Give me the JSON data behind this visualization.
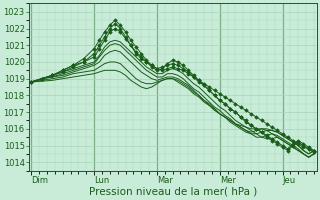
{
  "xlabel": "Pression niveau de la mer( hPa )",
  "background_color": "#c8ecd8",
  "plot_bg_color": "#c8ecd8",
  "grid_color": "#a8d4b8",
  "line_color": "#1a5c1a",
  "ylim": [
    1013.5,
    1023.5
  ],
  "yticks": [
    1014,
    1015,
    1016,
    1017,
    1018,
    1019,
    1020,
    1021,
    1022,
    1023
  ],
  "day_labels": [
    "Dim",
    "Lun",
    "Mar",
    "Mer",
    "Jeu"
  ],
  "day_positions": [
    0,
    24,
    48,
    72,
    96
  ],
  "xlim": [
    -1,
    109
  ],
  "n_points": 109,
  "linewidth": 0.7,
  "fontsize_ticks": 6.0,
  "fontsize_xlabel": 7.5,
  "tick_color": "#1a5c1a",
  "spine_color": "#1a5c1a",
  "figwidth": 3.2,
  "figheight": 2.0,
  "dpi": 100,
  "series": [
    {
      "x": [
        0,
        4,
        8,
        12,
        16,
        20,
        24,
        26,
        28,
        30,
        32,
        34,
        36,
        38,
        40,
        42,
        44,
        46,
        48,
        50,
        52,
        54,
        56,
        58,
        60,
        62,
        64,
        66,
        68,
        70,
        72,
        74,
        76,
        78,
        80,
        82,
        84,
        86,
        88,
        90,
        92,
        94,
        96,
        98,
        100,
        102,
        104,
        106,
        108
      ],
      "y": [
        1018.8,
        1019.0,
        1019.2,
        1019.5,
        1019.8,
        1020.0,
        1020.5,
        1021.0,
        1021.5,
        1022.0,
        1022.3,
        1022.0,
        1021.5,
        1021.0,
        1020.5,
        1020.2,
        1020.0,
        1019.8,
        1019.6,
        1019.5,
        1019.6,
        1019.7,
        1019.6,
        1019.5,
        1019.3,
        1019.1,
        1018.9,
        1018.7,
        1018.5,
        1018.3,
        1018.1,
        1017.9,
        1017.7,
        1017.5,
        1017.3,
        1017.1,
        1016.9,
        1016.7,
        1016.5,
        1016.3,
        1016.1,
        1015.9,
        1015.7,
        1015.5,
        1015.3,
        1015.1,
        1014.9,
        1014.8,
        1014.7
      ],
      "marker": true
    },
    {
      "x": [
        0,
        4,
        8,
        12,
        16,
        20,
        24,
        26,
        28,
        30,
        32,
        34,
        36,
        38,
        40,
        42,
        44,
        46,
        48,
        50,
        52,
        54,
        56,
        58,
        60,
        62,
        64,
        66,
        68,
        70,
        72,
        74,
        76,
        78,
        80,
        82,
        84,
        86,
        88,
        90,
        92,
        94,
        96,
        98,
        100,
        102,
        104,
        106,
        108
      ],
      "y": [
        1018.8,
        1019.0,
        1019.2,
        1019.5,
        1019.8,
        1020.2,
        1020.8,
        1021.3,
        1021.8,
        1022.2,
        1022.5,
        1022.2,
        1021.8,
        1021.3,
        1020.9,
        1020.5,
        1020.1,
        1019.8,
        1019.6,
        1019.7,
        1019.8,
        1019.9,
        1019.8,
        1019.6,
        1019.4,
        1019.1,
        1018.8,
        1018.6,
        1018.3,
        1018.0,
        1017.7,
        1017.5,
        1017.2,
        1017.0,
        1016.7,
        1016.5,
        1016.2,
        1016.0,
        1015.8,
        1015.5,
        1015.3,
        1015.1,
        1014.9,
        1014.7,
        1015.0,
        1015.2,
        1015.0,
        1014.8,
        1014.6
      ],
      "marker": true
    },
    {
      "x": [
        0,
        4,
        8,
        12,
        16,
        20,
        24,
        26,
        28,
        30,
        32,
        34,
        36,
        38,
        40,
        42,
        44,
        46,
        48,
        50,
        52,
        54,
        56,
        58,
        60,
        62,
        64,
        66,
        68,
        70,
        72,
        74,
        76,
        78,
        80,
        82,
        84,
        86,
        88,
        90,
        92,
        94,
        96,
        98,
        100,
        102,
        104,
        106,
        108
      ],
      "y": [
        1018.8,
        1019.0,
        1019.2,
        1019.4,
        1019.7,
        1020.0,
        1020.3,
        1020.8,
        1021.3,
        1021.8,
        1022.0,
        1021.8,
        1021.4,
        1021.0,
        1020.6,
        1020.3,
        1020.0,
        1019.7,
        1019.5,
        1019.6,
        1019.9,
        1020.1,
        1020.0,
        1019.8,
        1019.5,
        1019.2,
        1018.9,
        1018.6,
        1018.3,
        1018.0,
        1017.7,
        1017.5,
        1017.2,
        1017.0,
        1016.7,
        1016.4,
        1016.2,
        1016.0,
        1015.8,
        1015.6,
        1015.4,
        1015.2,
        1015.0,
        1014.8,
        1015.1,
        1015.3,
        1015.1,
        1014.9,
        1014.7
      ],
      "marker": true
    },
    {
      "x": [
        0,
        4,
        8,
        12,
        16,
        20,
        24,
        26,
        28,
        30,
        32,
        34,
        36,
        38,
        40,
        42,
        44,
        46,
        48,
        50,
        52,
        54,
        56,
        58,
        60,
        62,
        64,
        66,
        68,
        70,
        72,
        74,
        76,
        78,
        80,
        82,
        84,
        86,
        88,
        90,
        92,
        94,
        96,
        98,
        100,
        102,
        104,
        106,
        108
      ],
      "y": [
        1018.8,
        1019.0,
        1019.2,
        1019.4,
        1019.6,
        1019.8,
        1020.0,
        1020.4,
        1020.9,
        1021.2,
        1021.3,
        1021.2,
        1020.9,
        1020.6,
        1020.3,
        1020.0,
        1019.7,
        1019.5,
        1019.3,
        1019.3,
        1019.5,
        1019.6,
        1019.5,
        1019.3,
        1019.0,
        1018.7,
        1018.5,
        1018.2,
        1017.9,
        1017.6,
        1017.3,
        1017.1,
        1016.8,
        1016.5,
        1016.3,
        1016.1,
        1015.9,
        1015.7,
        1015.5,
        1015.4,
        1015.4,
        1015.5,
        1015.3,
        1015.1,
        1014.9,
        1014.7,
        1014.5,
        1014.3,
        1014.5
      ],
      "marker": false
    },
    {
      "x": [
        0,
        4,
        8,
        12,
        16,
        20,
        24,
        26,
        28,
        30,
        32,
        34,
        36,
        38,
        40,
        42,
        44,
        46,
        48,
        50,
        52,
        54,
        56,
        58,
        60,
        62,
        64,
        66,
        68,
        70,
        72,
        74,
        76,
        78,
        80,
        82,
        84,
        86,
        88,
        90,
        92,
        94,
        96,
        98,
        100,
        102,
        104,
        106,
        108
      ],
      "y": [
        1018.8,
        1019.0,
        1019.1,
        1019.3,
        1019.5,
        1019.7,
        1019.9,
        1020.3,
        1020.7,
        1021.0,
        1021.1,
        1021.0,
        1020.7,
        1020.4,
        1020.1,
        1019.8,
        1019.5,
        1019.3,
        1019.1,
        1019.1,
        1019.3,
        1019.3,
        1019.2,
        1019.0,
        1018.7,
        1018.4,
        1018.2,
        1017.9,
        1017.6,
        1017.3,
        1017.1,
        1016.8,
        1016.6,
        1016.3,
        1016.1,
        1015.9,
        1015.7,
        1015.5,
        1015.5,
        1015.6,
        1015.7,
        1015.6,
        1015.4,
        1015.2,
        1015.0,
        1014.8,
        1014.5,
        1014.3,
        1014.5
      ],
      "marker": false
    },
    {
      "x": [
        0,
        4,
        8,
        12,
        16,
        20,
        24,
        26,
        28,
        30,
        32,
        34,
        36,
        38,
        40,
        42,
        44,
        46,
        48,
        50,
        52,
        54,
        56,
        58,
        60,
        62,
        64,
        66,
        68,
        70,
        72,
        74,
        76,
        78,
        80,
        82,
        84,
        86,
        88,
        90,
        92,
        94,
        96,
        98,
        100,
        102,
        104,
        106,
        108
      ],
      "y": [
        1018.8,
        1019.0,
        1019.1,
        1019.2,
        1019.4,
        1019.6,
        1019.8,
        1020.0,
        1020.4,
        1020.6,
        1020.7,
        1020.6,
        1020.3,
        1020.0,
        1019.7,
        1019.4,
        1019.2,
        1019.0,
        1018.9,
        1019.0,
        1019.1,
        1019.1,
        1019.0,
        1018.8,
        1018.6,
        1018.3,
        1018.0,
        1017.7,
        1017.5,
        1017.2,
        1016.9,
        1016.7,
        1016.4,
        1016.2,
        1016.0,
        1015.8,
        1015.7,
        1015.7,
        1015.8,
        1015.9,
        1015.9,
        1015.8,
        1015.6,
        1015.4,
        1015.2,
        1015.0,
        1014.7,
        1014.5,
        1014.7
      ],
      "marker": false
    },
    {
      "x": [
        0,
        4,
        8,
        12,
        16,
        20,
        24,
        26,
        28,
        30,
        32,
        34,
        36,
        38,
        40,
        42,
        44,
        46,
        48,
        50,
        52,
        54,
        56,
        58,
        60,
        62,
        64,
        66,
        68,
        70,
        72,
        74,
        76,
        78,
        80,
        82,
        84,
        86,
        88,
        90,
        92,
        94,
        96,
        98,
        100,
        102,
        104,
        106,
        108
      ],
      "y": [
        1018.8,
        1018.9,
        1019.0,
        1019.1,
        1019.3,
        1019.4,
        1019.5,
        1019.7,
        1019.9,
        1020.0,
        1020.0,
        1019.9,
        1019.6,
        1019.3,
        1019.0,
        1018.8,
        1018.7,
        1018.7,
        1018.8,
        1018.9,
        1019.0,
        1019.0,
        1018.9,
        1018.7,
        1018.5,
        1018.2,
        1018.0,
        1017.7,
        1017.4,
        1017.2,
        1016.9,
        1016.7,
        1016.5,
        1016.3,
        1016.1,
        1015.9,
        1015.8,
        1015.9,
        1016.0,
        1016.0,
        1015.9,
        1015.8,
        1015.6,
        1015.4,
        1015.2,
        1015.0,
        1014.7,
        1014.5,
        1014.7
      ],
      "marker": false
    },
    {
      "x": [
        0,
        4,
        8,
        12,
        16,
        20,
        24,
        26,
        28,
        30,
        32,
        34,
        36,
        38,
        40,
        42,
        44,
        46,
        48,
        50,
        52,
        54,
        56,
        58,
        60,
        62,
        64,
        66,
        68,
        70,
        72,
        74,
        76,
        78,
        80,
        82,
        84,
        86,
        88,
        90,
        92,
        94,
        96,
        98,
        100,
        102,
        104,
        106,
        108
      ],
      "y": [
        1018.8,
        1018.85,
        1018.9,
        1019.0,
        1019.1,
        1019.2,
        1019.3,
        1019.4,
        1019.5,
        1019.5,
        1019.5,
        1019.4,
        1019.2,
        1018.9,
        1018.7,
        1018.5,
        1018.4,
        1018.5,
        1018.7,
        1018.9,
        1019.0,
        1019.0,
        1018.8,
        1018.6,
        1018.4,
        1018.1,
        1017.9,
        1017.6,
        1017.4,
        1017.1,
        1016.9,
        1016.7,
        1016.5,
        1016.3,
        1016.2,
        1016.1,
        1016.0,
        1016.0,
        1016.0,
        1015.9,
        1015.7,
        1015.5,
        1015.3,
        1015.1,
        1014.9,
        1014.7,
        1014.5,
        1014.3,
        1014.5
      ],
      "marker": false
    }
  ]
}
